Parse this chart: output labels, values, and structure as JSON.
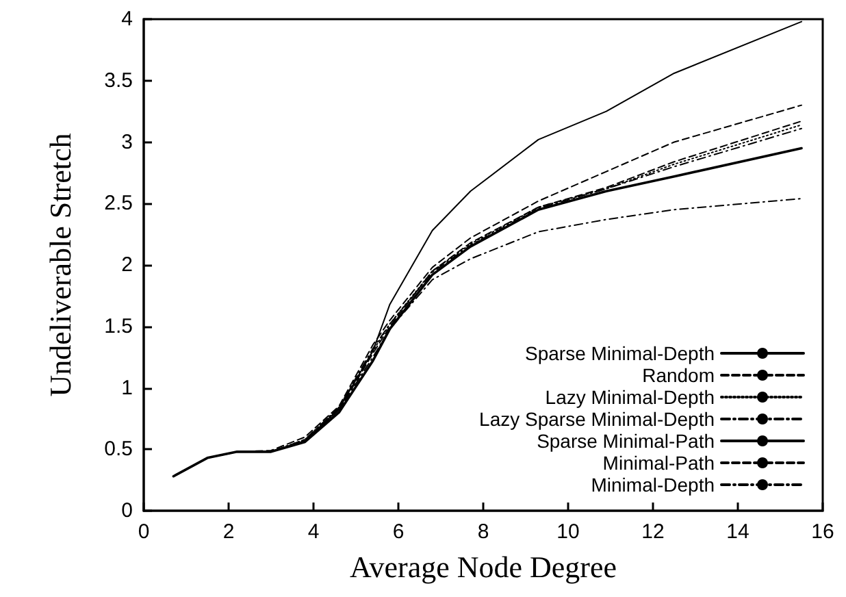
{
  "chart_data": {
    "type": "line",
    "xlabel": "Average Node Degree",
    "ylabel": "Undeliverable Stretch",
    "x": [
      0.7,
      1.5,
      2.2,
      3.0,
      3.8,
      4.6,
      5.4,
      5.8,
      6.8,
      7.7,
      9.3,
      10.9,
      12.5,
      15.5
    ],
    "series": [
      {
        "name": "Sparse Minimal-Depth",
        "color": "#000000",
        "line_style": "solid",
        "values": [
          0.28,
          0.43,
          0.48,
          0.48,
          0.57,
          0.83,
          1.3,
          1.68,
          2.28,
          2.6,
          3.02,
          3.25,
          3.56,
          3.98
        ]
      },
      {
        "name": "Random",
        "color": "#000000",
        "line_style": "dashed",
        "values": [
          0.28,
          0.43,
          0.48,
          0.49,
          0.6,
          0.85,
          1.35,
          1.55,
          1.98,
          2.22,
          2.52,
          2.76,
          3.0,
          3.3
        ]
      },
      {
        "name": "Lazy Minimal-Depth",
        "color": "#000000",
        "line_style": "dotted",
        "values": [
          0.28,
          0.43,
          0.48,
          0.48,
          0.58,
          0.84,
          1.3,
          1.52,
          1.95,
          2.17,
          2.47,
          2.62,
          2.82,
          3.14
        ]
      },
      {
        "name": "Lazy Sparse Minimal-Depth",
        "color": "#000000",
        "line_style": "dashdot",
        "values": [
          0.28,
          0.43,
          0.48,
          0.48,
          0.58,
          0.84,
          1.32,
          1.52,
          1.94,
          2.16,
          2.46,
          2.62,
          2.8,
          3.11
        ]
      },
      {
        "name": "Sparse Minimal-Path",
        "color": "#000000",
        "line_style": "solid",
        "values": [
          0.28,
          0.43,
          0.48,
          0.48,
          0.56,
          0.8,
          1.22,
          1.48,
          1.92,
          2.15,
          2.45,
          2.6,
          2.72,
          2.95
        ]
      },
      {
        "name": "Minimal-Path",
        "color": "#000000",
        "line_style": "dashed",
        "values": [
          0.28,
          0.43,
          0.48,
          0.48,
          0.57,
          0.82,
          1.28,
          1.5,
          1.95,
          2.18,
          2.47,
          2.63,
          2.84,
          3.17
        ]
      },
      {
        "name": "Minimal-Depth",
        "color": "#000000",
        "line_style": "dashdot",
        "values": [
          0.28,
          0.43,
          0.48,
          0.48,
          0.57,
          0.82,
          1.25,
          1.48,
          1.88,
          2.05,
          2.27,
          2.37,
          2.45,
          2.54
        ]
      }
    ],
    "xlim": [
      0,
      16
    ],
    "xticks": [
      0,
      2,
      4,
      6,
      8,
      10,
      12,
      14,
      16
    ],
    "ylim": [
      0,
      4
    ],
    "yticks": [
      0,
      0.5,
      1,
      1.5,
      2,
      2.5,
      3,
      3.5,
      4
    ],
    "grid": false,
    "legend": "bottom right",
    "marker": "none"
  }
}
